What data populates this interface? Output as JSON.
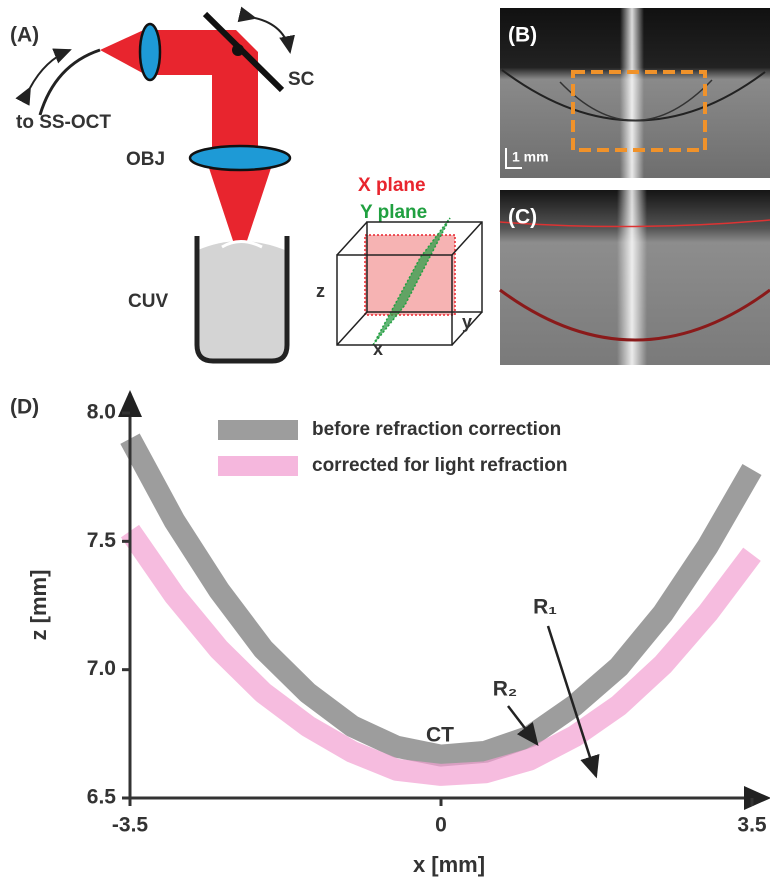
{
  "panels": {
    "a": {
      "label": "(A)",
      "fiber": "to SS-OCT",
      "scanner": "SC",
      "objective": "OBJ",
      "cuvette": "CUV",
      "x_plane": "X plane",
      "y_plane": "Y plane",
      "axis_z": "z",
      "axis_y": "y",
      "axis_x": "x"
    },
    "b": {
      "label": "(B)",
      "scale": "1 mm"
    },
    "c": {
      "label": "(C)"
    }
  },
  "chart_data": {
    "type": "line",
    "panel_label": "(D)",
    "x_label": "x [mm]",
    "y_label": "z [mm]",
    "x": [
      -3.5,
      -3,
      -2.5,
      -2,
      -1.5,
      -1,
      -0.5,
      0,
      0.5,
      1,
      1.5,
      2,
      2.5,
      3,
      3.5
    ],
    "series": [
      {
        "name": "before refraction correction",
        "color": "#8c8c8c",
        "values": [
          7.9,
          7.58,
          7.31,
          7.08,
          6.91,
          6.78,
          6.7,
          6.665,
          6.68,
          6.74,
          6.86,
          7.01,
          7.22,
          7.48,
          7.78
        ]
      },
      {
        "name": "corrected for light refraction",
        "color": "#f29fd2",
        "values": [
          7.54,
          7.29,
          7.08,
          6.91,
          6.78,
          6.68,
          6.61,
          6.59,
          6.6,
          6.65,
          6.74,
          6.86,
          7.02,
          7.22,
          7.45
        ]
      }
    ],
    "annotations": [
      "CT",
      "R₁",
      "R₂"
    ],
    "xlim": [
      -3.5,
      3.5
    ],
    "xticks": [
      -3.5,
      0,
      3.5
    ],
    "ylim": [
      6.5,
      8.0
    ],
    "yticks": [
      {
        "value": 6.5,
        "label": "6.5"
      },
      {
        "value": 7,
        "label": "7.0"
      },
      {
        "value": 7.5,
        "label": "7.5"
      },
      {
        "value": 8,
        "label": "8.0"
      }
    ]
  }
}
